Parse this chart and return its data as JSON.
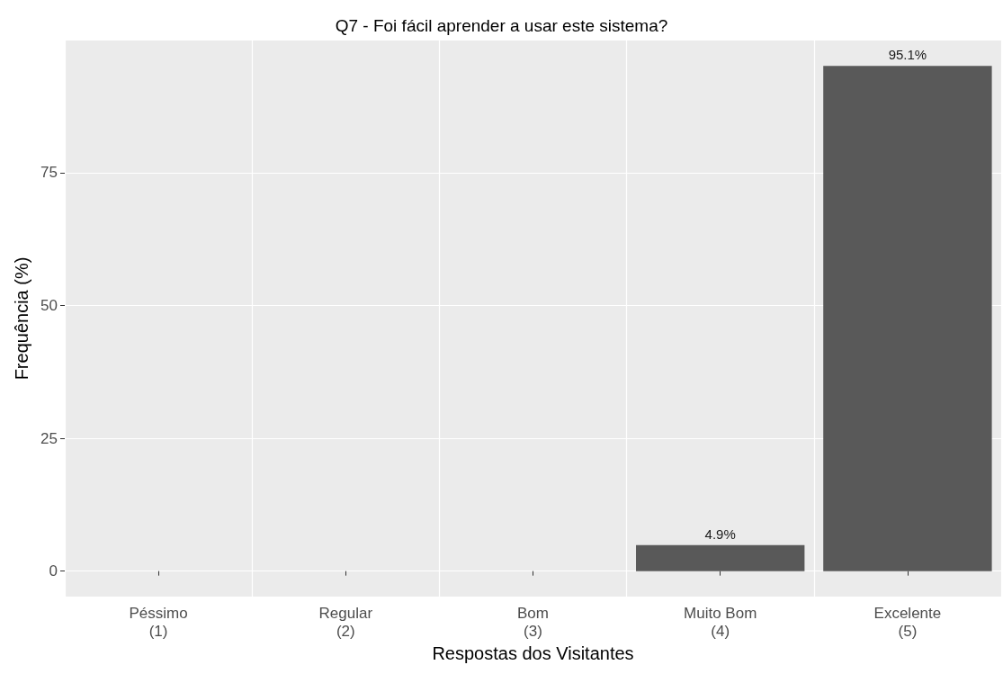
{
  "chart_data": {
    "type": "bar",
    "title": "Q7 - Foi fácil aprender a usar este sistema?",
    "xlabel": "Respostas dos Visitantes",
    "ylabel": "Frequência (%)",
    "categories": [
      "Péssimo\n(1)",
      "Regular\n(2)",
      "Bom\n(3)",
      "Muito Bom\n(4)",
      "Excelente\n(5)"
    ],
    "values": [
      0,
      0,
      0,
      4.9,
      95.1
    ],
    "color": "#595959",
    "value_labels": [
      null,
      null,
      null,
      "4.9%",
      "95.1%"
    ],
    "ylim": [
      -4.8,
      99.9
    ],
    "yticks": [
      0,
      25,
      50,
      75
    ],
    "grid": true
  }
}
